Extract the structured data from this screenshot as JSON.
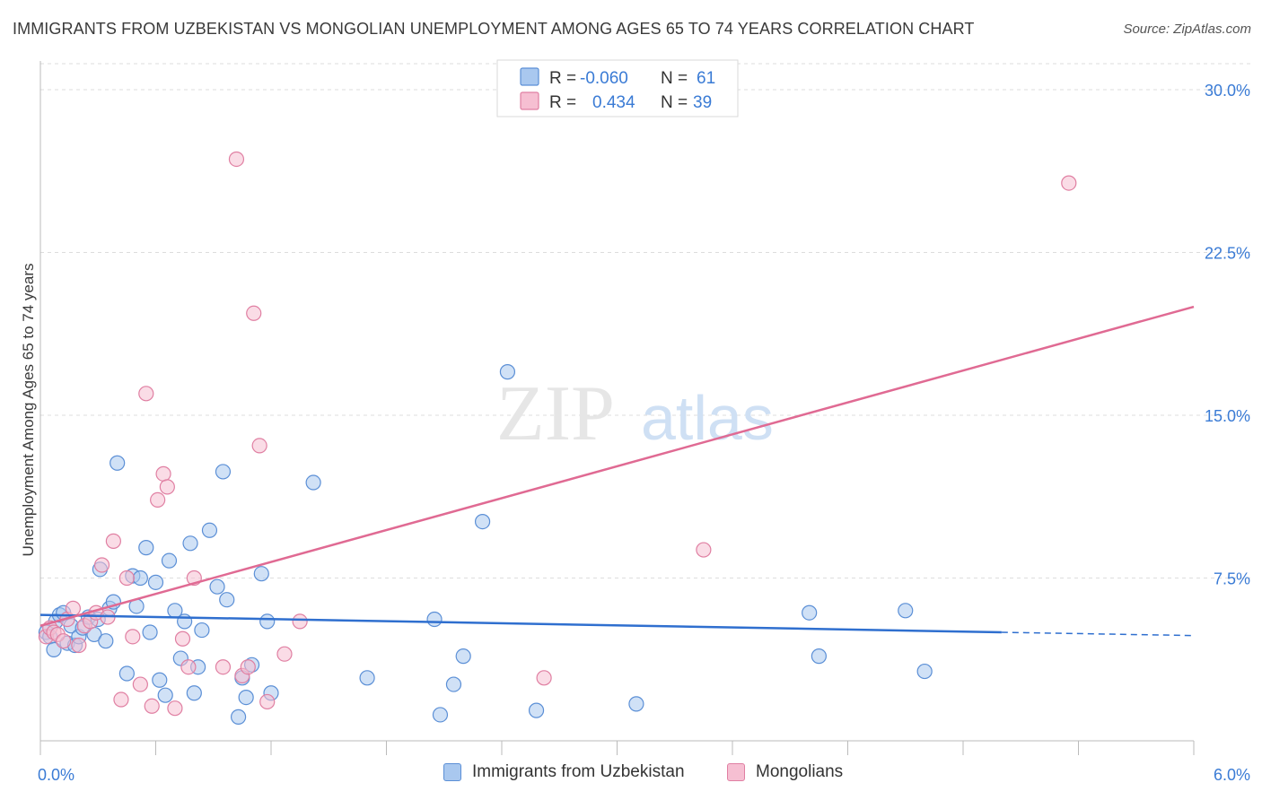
{
  "title": "IMMIGRANTS FROM UZBEKISTAN VS MONGOLIAN UNEMPLOYMENT AMONG AGES 65 TO 74 YEARS CORRELATION CHART",
  "source": "Source: ZipAtlas.com",
  "watermark": {
    "zip": "ZIP",
    "atlas": "atlas"
  },
  "colors": {
    "blue_fill": "#a9c8ef",
    "blue_stroke": "#5b8fd6",
    "blue_line": "#2f6fcf",
    "pink_fill": "#f6bfd2",
    "pink_stroke": "#e07fa2",
    "pink_line": "#e06a93",
    "axis_label": "#3a7bd5",
    "grid": "#dddddd"
  },
  "legend_top": {
    "rows": [
      {
        "r_label": "R =",
        "r_value": "-0.060",
        "n_label": "N =",
        "n_value": "61"
      },
      {
        "r_label": "R =",
        "r_value": "0.434",
        "n_label": "N =",
        "n_value": "39"
      }
    ]
  },
  "chart_data": {
    "type": "scatter",
    "title": "IMMIGRANTS FROM UZBEKISTAN VS MONGOLIAN UNEMPLOYMENT AMONG AGES 65 TO 74 YEARS CORRELATION CHART",
    "xlabel": "",
    "ylabel": "Unemployment Among Ages 65 to 74 years",
    "xlim": [
      0,
      6.0
    ],
    "ylim": [
      0,
      31.2
    ],
    "x_tick_labels": [
      "0.0%",
      "6.0%"
    ],
    "y_ticks": [
      7.5,
      15.0,
      22.5,
      30.0
    ],
    "y_tick_labels": [
      "7.5%",
      "15.0%",
      "22.5%",
      "30.0%"
    ],
    "grid": true,
    "series": [
      {
        "name": "Immigrants from Uzbekistan",
        "color": "blue",
        "trend": {
          "x0": 0.0,
          "y0": 5.8,
          "x1": 5.0,
          "y1": 5.0,
          "dash_to_x": 6.0,
          "dash_to_y": 4.85
        },
        "points": [
          [
            0.03,
            5.0
          ],
          [
            0.05,
            4.8
          ],
          [
            0.07,
            4.2
          ],
          [
            0.08,
            5.5
          ],
          [
            0.1,
            5.8
          ],
          [
            0.12,
            5.9
          ],
          [
            0.14,
            4.5
          ],
          [
            0.16,
            5.3
          ],
          [
            0.18,
            4.4
          ],
          [
            0.2,
            4.8
          ],
          [
            0.22,
            5.2
          ],
          [
            0.25,
            5.7
          ],
          [
            0.28,
            4.9
          ],
          [
            0.3,
            5.6
          ],
          [
            0.31,
            7.9
          ],
          [
            0.34,
            4.6
          ],
          [
            0.36,
            6.1
          ],
          [
            0.38,
            6.4
          ],
          [
            0.4,
            12.8
          ],
          [
            0.45,
            3.1
          ],
          [
            0.48,
            7.6
          ],
          [
            0.5,
            6.2
          ],
          [
            0.52,
            7.5
          ],
          [
            0.55,
            8.9
          ],
          [
            0.57,
            5.0
          ],
          [
            0.6,
            7.3
          ],
          [
            0.62,
            2.8
          ],
          [
            0.65,
            2.1
          ],
          [
            0.67,
            8.3
          ],
          [
            0.7,
            6.0
          ],
          [
            0.73,
            3.8
          ],
          [
            0.75,
            5.5
          ],
          [
            0.78,
            9.1
          ],
          [
            0.8,
            2.2
          ],
          [
            0.82,
            3.4
          ],
          [
            0.84,
            5.1
          ],
          [
            0.88,
            9.7
          ],
          [
            0.92,
            7.1
          ],
          [
            0.95,
            12.4
          ],
          [
            0.97,
            6.5
          ],
          [
            1.03,
            1.1
          ],
          [
            1.05,
            2.9
          ],
          [
            1.07,
            2.0
          ],
          [
            1.1,
            3.5
          ],
          [
            1.15,
            7.7
          ],
          [
            1.18,
            5.5
          ],
          [
            1.2,
            2.2
          ],
          [
            1.42,
            11.9
          ],
          [
            1.7,
            2.9
          ],
          [
            2.05,
            5.6
          ],
          [
            2.08,
            1.2
          ],
          [
            2.15,
            2.6
          ],
          [
            2.2,
            3.9
          ],
          [
            2.3,
            10.1
          ],
          [
            2.43,
            17.0
          ],
          [
            2.58,
            1.4
          ],
          [
            3.1,
            1.7
          ],
          [
            4.0,
            5.9
          ],
          [
            4.05,
            3.9
          ],
          [
            4.5,
            6.0
          ],
          [
            4.6,
            3.2
          ]
        ]
      },
      {
        "name": "Mongolians",
        "color": "pink",
        "trend": {
          "x0": 0.0,
          "y0": 5.3,
          "x1": 6.0,
          "y1": 20.0
        },
        "points": [
          [
            0.03,
            4.8
          ],
          [
            0.05,
            5.2
          ],
          [
            0.07,
            5.0
          ],
          [
            0.09,
            4.9
          ],
          [
            0.12,
            4.6
          ],
          [
            0.14,
            5.6
          ],
          [
            0.17,
            6.1
          ],
          [
            0.2,
            4.4
          ],
          [
            0.23,
            5.3
          ],
          [
            0.26,
            5.5
          ],
          [
            0.29,
            5.9
          ],
          [
            0.32,
            8.1
          ],
          [
            0.35,
            5.7
          ],
          [
            0.38,
            9.2
          ],
          [
            0.42,
            1.9
          ],
          [
            0.45,
            7.5
          ],
          [
            0.48,
            4.8
          ],
          [
            0.52,
            2.6
          ],
          [
            0.55,
            16.0
          ],
          [
            0.58,
            1.6
          ],
          [
            0.61,
            11.1
          ],
          [
            0.64,
            12.3
          ],
          [
            0.66,
            11.7
          ],
          [
            0.7,
            1.5
          ],
          [
            0.74,
            4.7
          ],
          [
            0.77,
            3.4
          ],
          [
            0.8,
            7.5
          ],
          [
            1.02,
            26.8
          ],
          [
            1.05,
            3.0
          ],
          [
            1.08,
            3.4
          ],
          [
            1.11,
            19.7
          ],
          [
            1.14,
            13.6
          ],
          [
            1.18,
            1.8
          ],
          [
            1.27,
            4.0
          ],
          [
            1.35,
            5.5
          ],
          [
            2.62,
            2.9
          ],
          [
            3.45,
            8.8
          ],
          [
            5.35,
            25.7
          ],
          [
            0.95,
            3.4
          ]
        ]
      }
    ]
  },
  "legend_bottom": {
    "items": [
      {
        "label": "Immigrants from Uzbekistan"
      },
      {
        "label": "Mongolians"
      }
    ]
  }
}
